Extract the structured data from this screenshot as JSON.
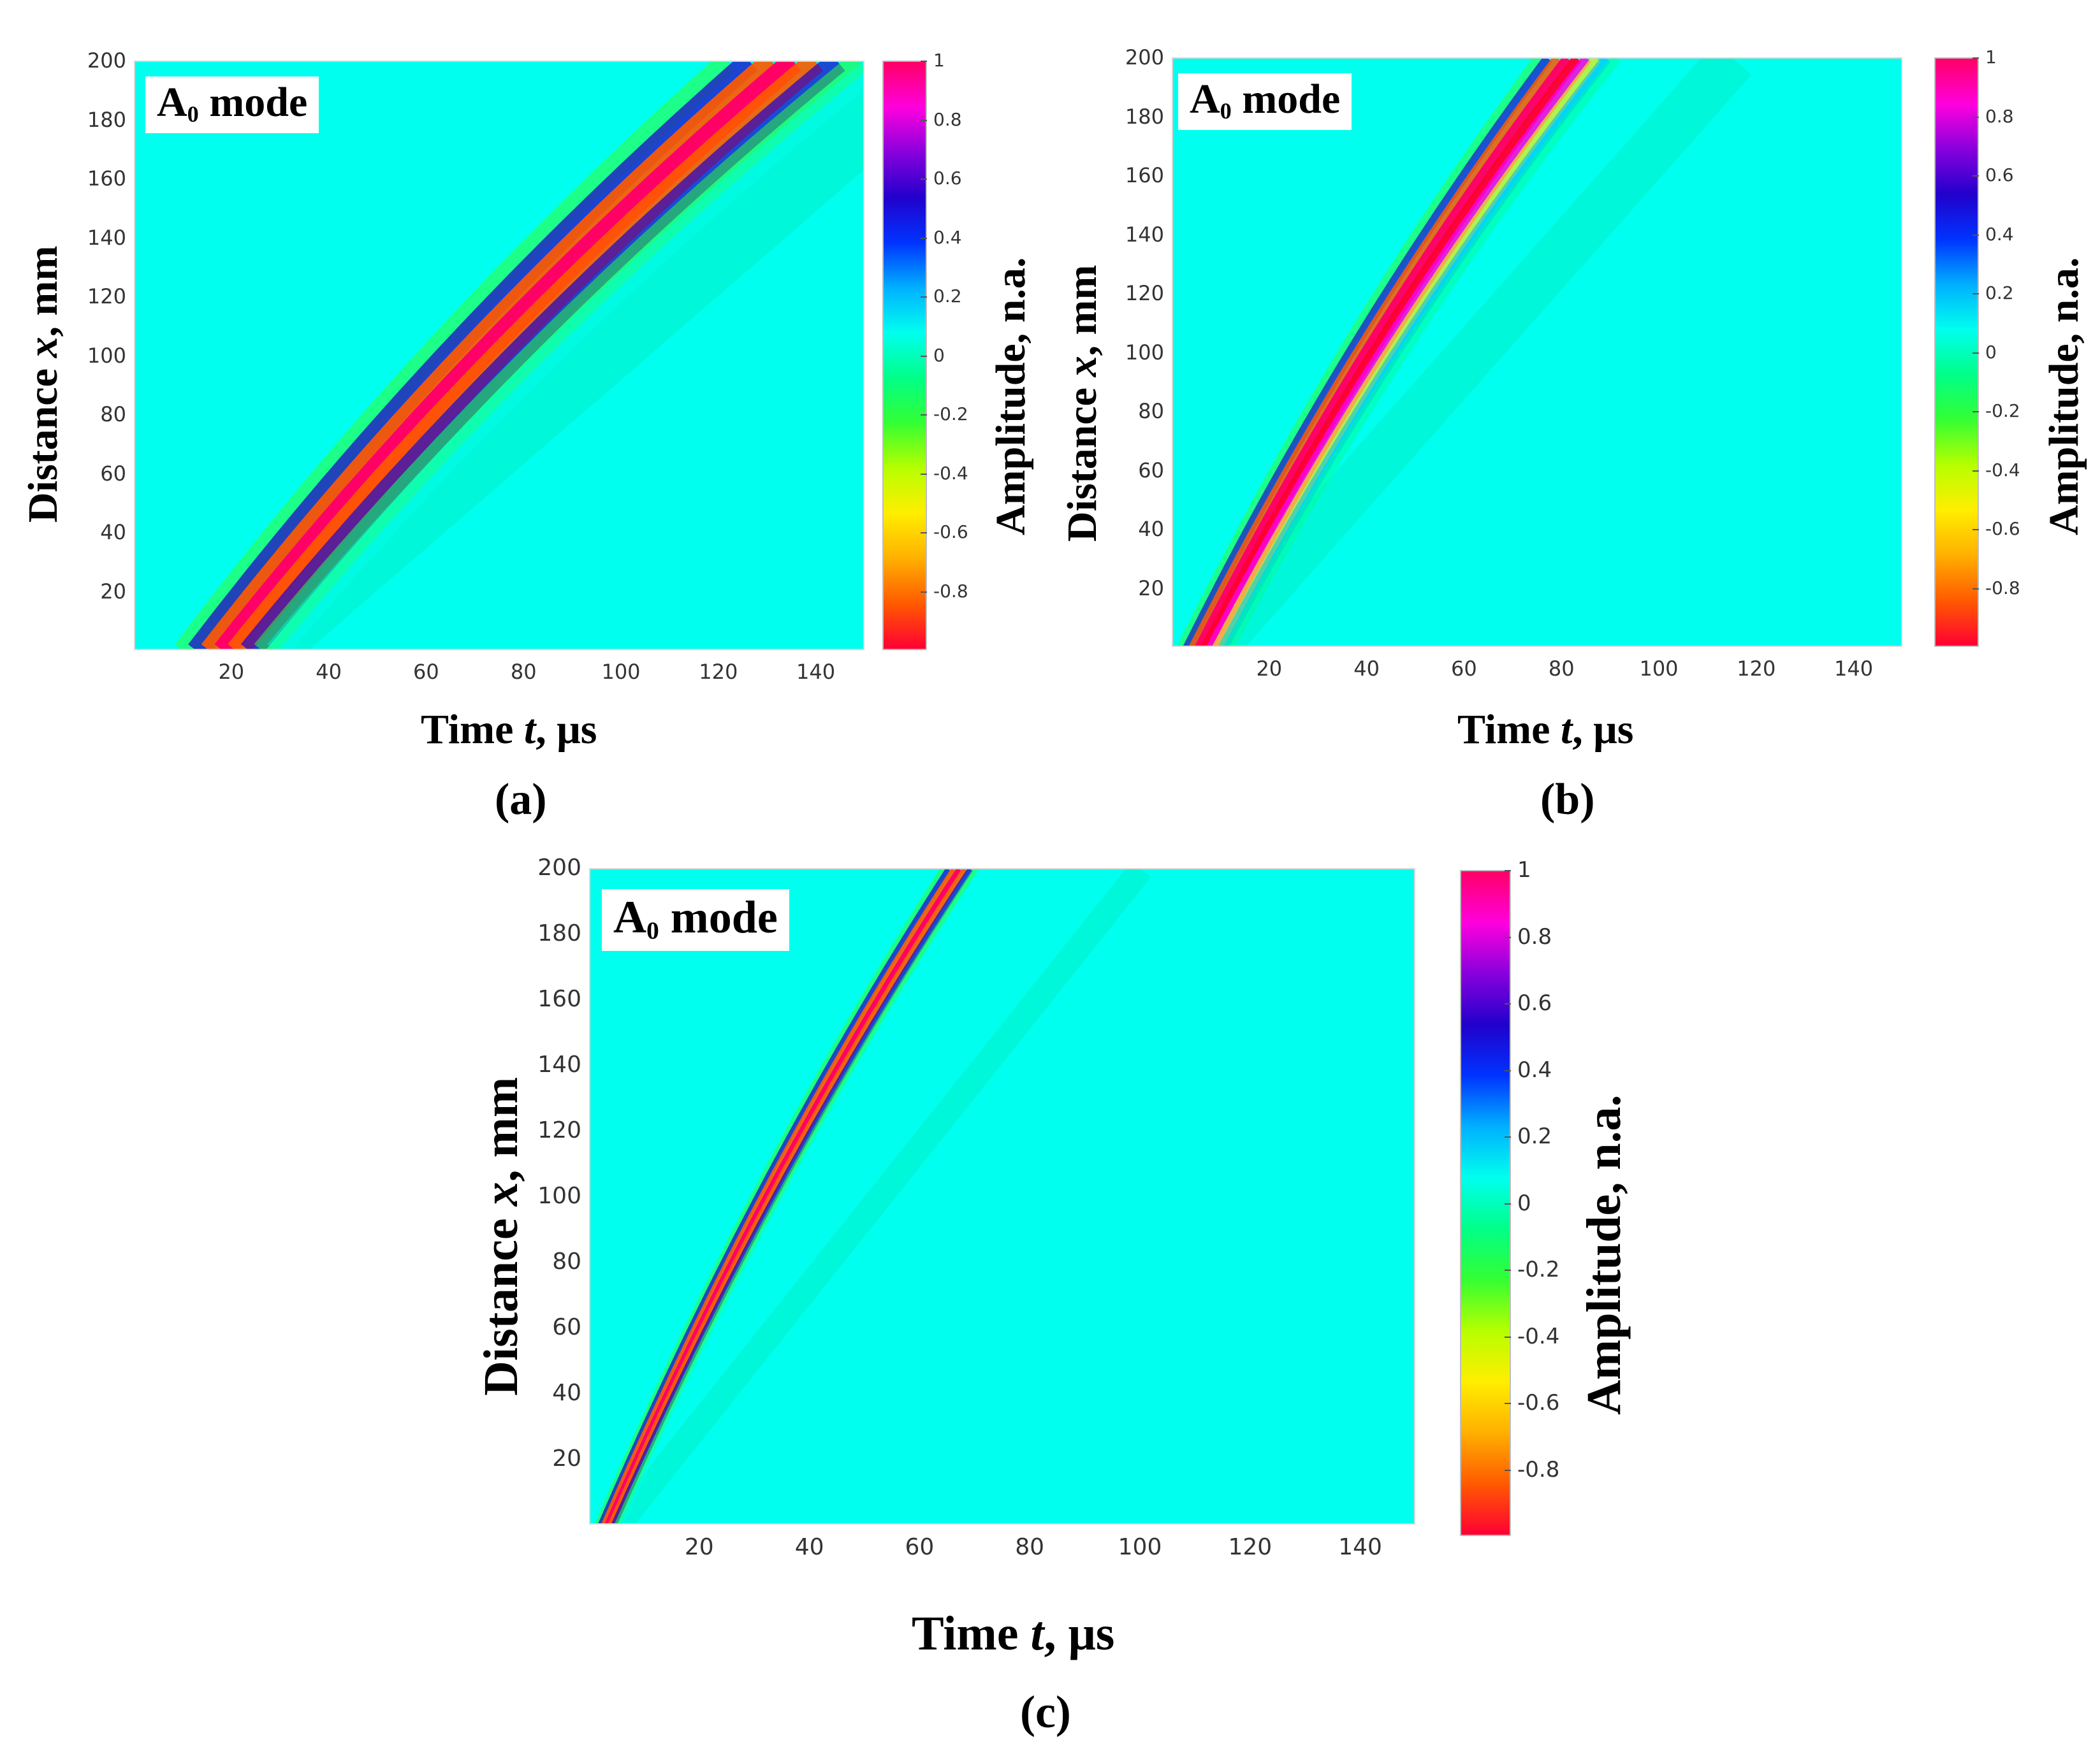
{
  "chart_data": [
    {
      "type": "heatmap",
      "panel": "(a)",
      "badge": {
        "letter": "A",
        "subscript": "0",
        "word": "mode"
      },
      "xlabel": "Time t, μs",
      "ylabel": "Distance x, mm",
      "colorbar_label": "Amplitude, n.a.",
      "xlim": [
        0,
        150
      ],
      "ylim": [
        0,
        200
      ],
      "xticks": [
        "20",
        "40",
        "60",
        "80",
        "100",
        "120",
        "140"
      ],
      "yticks": [
        "20",
        "40",
        "60",
        "80",
        "100",
        "120",
        "140",
        "160",
        "180",
        "200"
      ],
      "clim": [
        -1,
        1
      ],
      "cticks": [
        "1",
        "0.8",
        "0.6",
        "0.4",
        "0.2",
        "0",
        "-0.2",
        "-0.4",
        "-0.6",
        "-0.8"
      ],
      "wave_packet": {
        "start_time_us": 18,
        "start_distance_mm": 0,
        "arrival_time_at_200mm_us": 135,
        "packet_width_us": 40,
        "wavelength_us": 9,
        "secondary_arrival_at_200mm_us": 160
      }
    },
    {
      "type": "heatmap",
      "panel": "(b)",
      "badge": {
        "letter": "A",
        "subscript": "0",
        "word": "mode"
      },
      "xlabel": "Time t, μs",
      "ylabel": "Distance x, mm",
      "colorbar_label": "Amplitude, n.a.",
      "xlim": [
        0,
        150
      ],
      "ylim": [
        0,
        200
      ],
      "xticks": [
        "20",
        "40",
        "60",
        "80",
        "100",
        "120",
        "140"
      ],
      "yticks": [
        "20",
        "40",
        "60",
        "80",
        "100",
        "120",
        "140",
        "160",
        "180",
        "200"
      ],
      "clim": [
        -1,
        1
      ],
      "cticks": [
        "1",
        "0.8",
        "0.6",
        "0.4",
        "0.2",
        "0",
        "-0.2",
        "-0.4",
        "-0.6",
        "-0.8"
      ],
      "wave_packet": {
        "start_time_us": 6,
        "start_distance_mm": 0,
        "arrival_time_at_200mm_us": 82,
        "packet_width_us": 20,
        "wavelength_us": 4,
        "secondary_arrival_at_200mm_us": 115
      }
    },
    {
      "type": "heatmap",
      "panel": "(c)",
      "badge": {
        "letter": "A",
        "subscript": "0",
        "word": "mode"
      },
      "xlabel": "Time t, μs",
      "ylabel": "Distance x, mm",
      "colorbar_label": "Amplitude, n.a.",
      "xlim": [
        0,
        150
      ],
      "ylim": [
        0,
        200
      ],
      "xticks": [
        "20",
        "40",
        "60",
        "80",
        "100",
        "120",
        "140"
      ],
      "yticks": [
        "20",
        "40",
        "60",
        "80",
        "100",
        "120",
        "140",
        "160",
        "180",
        "200"
      ],
      "clim": [
        -1,
        1
      ],
      "cticks": [
        "1",
        "0.8",
        "0.6",
        "0.4",
        "0.2",
        "0",
        "-0.2",
        "-0.4",
        "-0.6",
        "-0.8"
      ],
      "wave_packet": {
        "start_time_us": 3,
        "start_distance_mm": 0,
        "arrival_time_at_200mm_us": 67,
        "packet_width_us": 9,
        "wavelength_us": 2,
        "secondary_arrival_at_200mm_us": 100
      }
    }
  ],
  "colors": {
    "background": "#00ffee",
    "colormap": [
      "#ff0033",
      "#ff5a00",
      "#ffb000",
      "#ffee00",
      "#b6ff00",
      "#33ff33",
      "#00ff88",
      "#00ffee",
      "#00b0ff",
      "#0033ff",
      "#2200cc",
      "#8800dd",
      "#ff00dd",
      "#ff0066"
    ]
  }
}
